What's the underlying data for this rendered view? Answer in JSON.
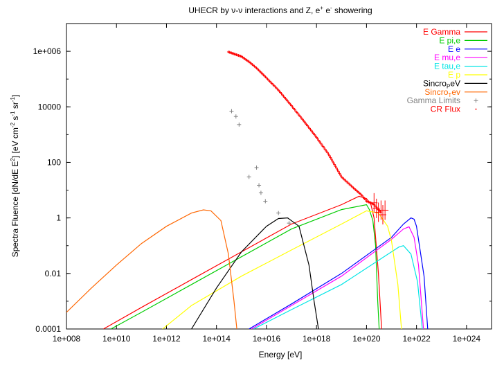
{
  "chart_data": {
    "type": "line",
    "title_prefix": "UHECR by ",
    "title_nu_interaction": "ν-ν",
    "title_middle": " interactions and Z, e",
    "title_sup_plus": "+",
    "title_e": " e",
    "title_sup_minus": "-",
    "title_suffix": " showering",
    "xlabel": "Energy [eV]",
    "ylabel_main": "Spectra Fluence [dN/dE E",
    "ylabel_sup2": "2",
    "ylabel_units": "] [eV cm",
    "ylabel_sup_m2": "-2",
    "ylabel_s": " s",
    "ylabel_sup_m1a": "-1",
    "ylabel_sr": " sr",
    "ylabel_sup_m1b": "-1",
    "ylabel_close": "]",
    "x_scale": "log",
    "y_scale": "log",
    "xlim": [
      100000000.0,
      1e+25
    ],
    "ylim": [
      0.0001,
      10000000.0
    ],
    "xticks": [
      {
        "value": 100000000.0,
        "label": "1e+008"
      },
      {
        "value": 10000000000.0,
        "label": "1e+010"
      },
      {
        "value": 1000000000000.0,
        "label": "1e+012"
      },
      {
        "value": 100000000000000.0,
        "label": "1e+014"
      },
      {
        "value": 1e+16,
        "label": "1e+016"
      },
      {
        "value": 1e+18,
        "label": "1e+018"
      },
      {
        "value": 1e+20,
        "label": "1e+020"
      },
      {
        "value": 1e+22,
        "label": "1e+022"
      },
      {
        "value": 1e+24,
        "label": "1e+024"
      }
    ],
    "yticks": [
      {
        "value": 0.0001,
        "label": "0.0001"
      },
      {
        "value": 0.01,
        "label": "0.01"
      },
      {
        "value": 1,
        "label": "1"
      },
      {
        "value": 100,
        "label": "100"
      },
      {
        "value": 10000,
        "label": "10000"
      },
      {
        "value": 1000000.0,
        "label": "1e+006"
      }
    ],
    "grid": false,
    "legend_position": "top-right",
    "series": [
      {
        "name": "E Gamma",
        "color": "#ff0000",
        "style": "line",
        "x": [
          3000000000.0,
          100000000000.0,
          10000000000000.0,
          1000000000000000.0,
          1e+17,
          1e+19,
          5e+19,
          1e+20,
          1.5e+20,
          2e+20,
          3e+20,
          4e+20
        ],
        "y": [
          0.0001,
          0.0006,
          0.006,
          0.06,
          0.6,
          3,
          6,
          5,
          3,
          1,
          0.01,
          0.0001
        ]
      },
      {
        "name": "E pi,e",
        "color": "#00cc00",
        "style": "line",
        "x": [
          6000000000.0,
          100000000000.0,
          10000000000000.0,
          1000000000000000.0,
          1e+17,
          1e+19,
          1e+20,
          1.3e+20,
          1.8e+20,
          2.3e+20,
          2.8e+20,
          3.2e+20
        ],
        "y": [
          0.0001,
          0.0004,
          0.004,
          0.04,
          0.4,
          2,
          3,
          2,
          0.8,
          0.1,
          0.001,
          0.0001
        ]
      },
      {
        "name": "E e",
        "color": "#0000ff",
        "style": "line",
        "x": [
          2000000000000000.0,
          1e+17,
          1e+19,
          1e+21,
          3e+21,
          6e+21,
          8e+21,
          1e+22,
          2e+22,
          2.8e+22
        ],
        "y": [
          0.0001,
          0.0008,
          0.01,
          0.2,
          0.6,
          1,
          0.9,
          0.5,
          0.008,
          0.0001
        ]
      },
      {
        "name": "E mu,e",
        "color": "#ff00ff",
        "style": "line",
        "x": [
          2500000000000000.0,
          1e+17,
          1e+19,
          1e+21,
          3e+21,
          5e+21,
          8e+21,
          1.2e+22,
          1.9e+22
        ],
        "y": [
          0.0001,
          0.0007,
          0.008,
          0.17,
          0.4,
          0.48,
          0.2,
          0.02,
          0.0001
        ]
      },
      {
        "name": "E tau,e",
        "color": "#00e5e5",
        "style": "line",
        "x": [
          3000000000000000.0,
          1e+17,
          1e+19,
          1e+21,
          2e+21,
          3e+21,
          6e+21,
          1.1e+22,
          1.7e+22
        ],
        "y": [
          0.0001,
          0.0005,
          0.004,
          0.06,
          0.09,
          0.1,
          0.05,
          0.005,
          0.0001
        ]
      },
      {
        "name": "E p",
        "color": "#ffff00",
        "style": "line",
        "x": [
          700000000000.0,
          10000000000000.0,
          1000000000000000.0,
          1e+17,
          1e+19,
          1e+20,
          3e+20,
          7e+20,
          1e+21,
          1.8e+21,
          2.5e+21
        ],
        "y": [
          0.0001,
          0.0007,
          0.008,
          0.07,
          0.6,
          1.8,
          1.5,
          0.5,
          0.15,
          0.004,
          0.0001
        ]
      },
      {
        "name": "SincroₚeV",
        "legend_main": "Sincro",
        "legend_sub": "P",
        "legend_tail": "eV",
        "color": "#000000",
        "style": "line",
        "x": [
          10000000000000.0,
          100000000000000.0,
          1000000000000000.0,
          1e+16,
          3e+16,
          7e+16,
          2e+17,
          5e+17,
          8e+17,
          1.2e+18
        ],
        "y": [
          0.0001,
          0.003,
          0.06,
          0.5,
          0.95,
          1,
          0.5,
          0.02,
          0.001,
          0.0001
        ]
      },
      {
        "name": "SincroₜeV",
        "legend_main": "Sincro",
        "legend_sub": "T",
        "legend_tail": "ev",
        "color": "#ff6600",
        "style": "line",
        "x": [
          100000000.0,
          1000000000.0,
          10000000000.0,
          100000000000.0,
          1000000000000.0,
          10000000000000.0,
          30000000000000.0,
          60000000000000.0,
          150000000000000.0,
          300000000000000.0,
          500000000000000.0,
          650000000000000.0
        ],
        "y": [
          0.0004,
          0.003,
          0.02,
          0.12,
          0.5,
          1.5,
          1.95,
          1.8,
          0.8,
          0.05,
          0.001,
          0.0001
        ]
      },
      {
        "name": "Gamma Limits",
        "color": "#808080",
        "style": "points",
        "x": [
          400000000000000.0,
          600000000000000.0,
          800000000000000.0,
          2000000000000000.0,
          4000000000000000.0,
          5000000000000000.0,
          6000000000000000.0,
          9000000000000000.0,
          3e+16,
          8e+16
        ],
        "y": [
          7000,
          4500,
          2300,
          30,
          65,
          15,
          8,
          4,
          1.5,
          0.65
        ]
      },
      {
        "name": "CR Flux",
        "color": "#ff0000",
        "style": "flux",
        "x": [
          300000000000000.0,
          1000000000000000.0,
          2000000000000000.0,
          4000000000000000.0,
          1e+16,
          3e+16,
          1e+17,
          3e+17,
          1e+18,
          3e+18,
          1e+19,
          3e+19,
          6e+19,
          1e+20,
          1.5e+20,
          2e+20,
          3e+20,
          4e+20
        ],
        "y": [
          950000,
          650000,
          420000,
          250000,
          110000,
          40000,
          11000,
          3200,
          800,
          200,
          30,
          12,
          7,
          4,
          3.5,
          3,
          2,
          1.5
        ]
      }
    ]
  }
}
